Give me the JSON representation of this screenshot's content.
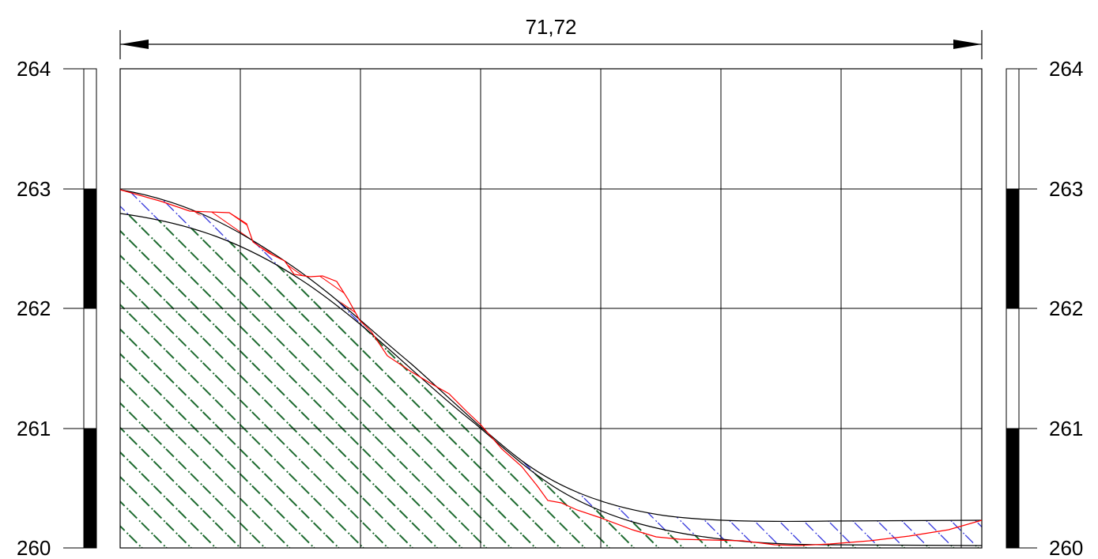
{
  "dimension": {
    "label": "71,72"
  },
  "elevation_scale": {
    "labels": [
      "264",
      "263",
      "262",
      "261",
      "260"
    ]
  },
  "profile": {
    "x_range_m": [
      0,
      71.72
    ],
    "y_range_m": [
      260,
      264
    ],
    "grid_interval_x_m": 10,
    "grid_interval_y_m": 1,
    "line_colors": {
      "frame": "#000000",
      "existing_terrain": "#ff0000",
      "design_surface": "#000000",
      "layer_boundary": "#000000",
      "lower_fill_hatch": "#1e6b30",
      "upper_fill_hatch": "#1f22d8"
    }
  }
}
